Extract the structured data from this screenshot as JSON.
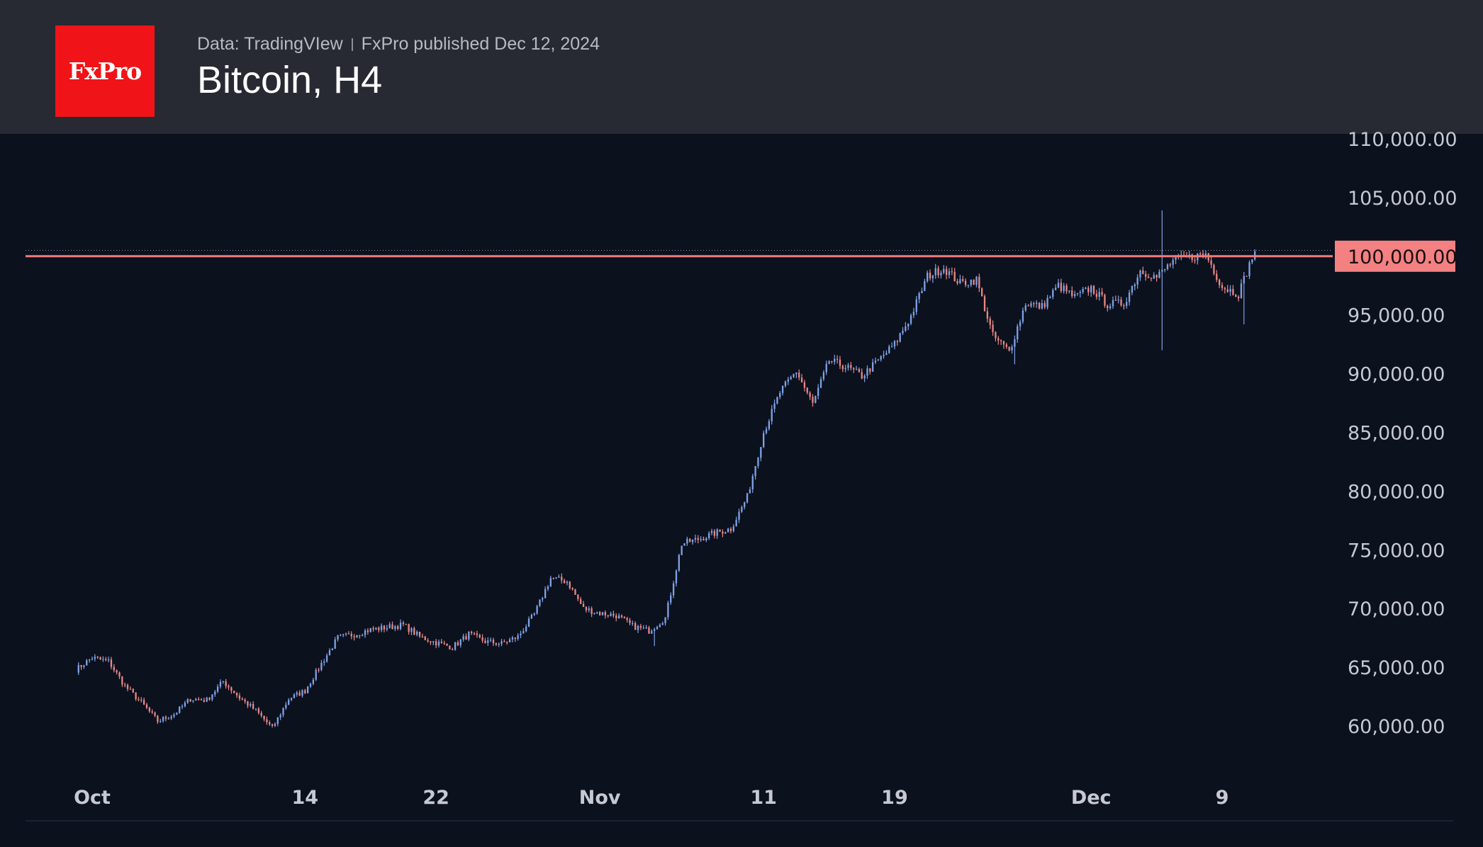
{
  "header": {
    "data_source": "Data: TradingVIew",
    "publisher": "FxPro published Dec 12, 2024",
    "title": "Bitcoin, H4"
  },
  "logo": {
    "text": "FxPro",
    "color": "#f01418"
  },
  "colors": {
    "background": "#0c111e",
    "header": "#272a33",
    "up_candle": "#7ea2e6",
    "down_candle": "#e98883",
    "level_line": "#f17b7b",
    "level_label_bg": "#f38182"
  },
  "chart_data": {
    "type": "candlestick",
    "timeframe": "H4",
    "title": "Bitcoin, H4",
    "x_tick_labels": [
      "Oct",
      "14",
      "22",
      "Nov",
      "11",
      "19",
      "Dec",
      "9"
    ],
    "x_tick_dates": [
      "2024-10-01",
      "2024-10-14",
      "2024-10-22",
      "2024-11-01",
      "2024-11-11",
      "2024-11-19",
      "2024-12-01",
      "2024-12-09"
    ],
    "y_tick_labels": [
      "60,000.00",
      "65,000.00",
      "70,000.00",
      "75,000.00",
      "80,000.00",
      "85,000.00",
      "90,000.00",
      "95,000.00",
      "100,000.00",
      "105,000.00",
      "110,000.00"
    ],
    "ylim": [
      57000,
      111000
    ],
    "horizontal_level": {
      "value": 100000,
      "label": "100,000.00"
    },
    "last_price_line": 100500,
    "date_range": [
      "2024-09-30",
      "2024-12-11"
    ],
    "price_path": [
      [
        "2024-09-30",
        64800
      ],
      [
        "2024-10-01",
        65800
      ],
      [
        "2024-10-02",
        65500
      ],
      [
        "2024-10-03",
        63400
      ],
      [
        "2024-10-04",
        62000
      ],
      [
        "2024-10-05",
        60400
      ],
      [
        "2024-10-06",
        61000
      ],
      [
        "2024-10-07",
        62300
      ],
      [
        "2024-10-08",
        62200
      ],
      [
        "2024-10-09",
        63800
      ],
      [
        "2024-10-10",
        62400
      ],
      [
        "2024-10-11",
        61300
      ],
      [
        "2024-10-12",
        59800
      ],
      [
        "2024-10-13",
        62300
      ],
      [
        "2024-10-14",
        63000
      ],
      [
        "2024-10-15",
        65300
      ],
      [
        "2024-10-16",
        67500
      ],
      [
        "2024-10-17",
        67800
      ],
      [
        "2024-10-18",
        68200
      ],
      [
        "2024-10-19",
        68400
      ],
      [
        "2024-10-20",
        68600
      ],
      [
        "2024-10-21",
        67600
      ],
      [
        "2024-10-22",
        67100
      ],
      [
        "2024-10-23",
        66700
      ],
      [
        "2024-10-24",
        67800
      ],
      [
        "2024-10-25",
        67200
      ],
      [
        "2024-10-26",
        67000
      ],
      [
        "2024-10-27",
        67600
      ],
      [
        "2024-10-28",
        69500
      ],
      [
        "2024-10-29",
        72600
      ],
      [
        "2024-10-30",
        72300
      ],
      [
        "2024-10-31",
        70000
      ],
      [
        "2024-11-01",
        69600
      ],
      [
        "2024-11-02",
        69400
      ],
      [
        "2024-11-03",
        68500
      ],
      [
        "2024-11-04",
        68100
      ],
      [
        "2024-11-05",
        69200
      ],
      [
        "2024-11-06",
        75500
      ],
      [
        "2024-11-07",
        75900
      ],
      [
        "2024-11-08",
        76400
      ],
      [
        "2024-11-09",
        76800
      ],
      [
        "2024-11-10",
        79500
      ],
      [
        "2024-11-11",
        85000
      ],
      [
        "2024-11-12",
        88400
      ],
      [
        "2024-11-13",
        90200
      ],
      [
        "2024-11-14",
        87400
      ],
      [
        "2024-11-15",
        91100
      ],
      [
        "2024-11-16",
        90600
      ],
      [
        "2024-11-17",
        89800
      ],
      [
        "2024-11-18",
        91100
      ],
      [
        "2024-11-19",
        92500
      ],
      [
        "2024-11-20",
        94900
      ],
      [
        "2024-11-21",
        98300
      ],
      [
        "2024-11-22",
        99000
      ],
      [
        "2024-11-23",
        97700
      ],
      [
        "2024-11-24",
        98000
      ],
      [
        "2024-11-25",
        93200
      ],
      [
        "2024-11-26",
        91900
      ],
      [
        "2024-11-27",
        96000
      ],
      [
        "2024-11-28",
        95700
      ],
      [
        "2024-11-29",
        97500
      ],
      [
        "2024-11-30",
        96500
      ],
      [
        "2024-12-01",
        97300
      ],
      [
        "2024-12-02",
        95900
      ],
      [
        "2024-12-03",
        96000
      ],
      [
        "2024-12-04",
        98800
      ],
      [
        "2024-12-05",
        98200
      ],
      [
        "2024-12-06",
        99600
      ],
      [
        "2024-12-07",
        99900
      ],
      [
        "2024-12-08",
        100200
      ],
      [
        "2024-12-09",
        97400
      ],
      [
        "2024-12-10",
        96800
      ],
      [
        "2024-12-11",
        100500
      ]
    ]
  }
}
